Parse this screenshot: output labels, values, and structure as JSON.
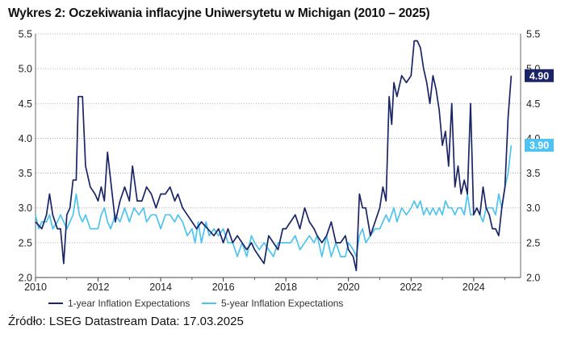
{
  "title": "Wykres 2: Oczekiwania inflacyjne Uniwersytetu w Michigan (2010 – 2025)",
  "source": "Źródło: LSEG Datastream Data: 17.03.2025",
  "chart_data": {
    "type": "line",
    "title": "Wykres 2: Oczekiwania inflacyjne Uniwersytetu w Michigan (2010 – 2025)",
    "xlabel": "",
    "ylabel": "",
    "xlim": [
      2010,
      2025.5
    ],
    "ylim": [
      2.0,
      5.5
    ],
    "x_ticks": [
      "2010",
      "2012",
      "2014",
      "2016",
      "2018",
      "2020",
      "2022",
      "2024"
    ],
    "y_ticks_left": [
      "2.0",
      "2.5",
      "3.0",
      "3.5",
      "4.0",
      "4.5",
      "5.0",
      "5.5"
    ],
    "y_ticks_right": [
      "2.0",
      "2.5",
      "3.0",
      "3.5",
      "4.0",
      "4.5",
      "5.0",
      "5.5"
    ],
    "grid": "horizontal dotted",
    "legend_position": "bottom",
    "end_labels": [
      "4.90",
      "3.90"
    ],
    "series": [
      {
        "name": "1-year Inflation Expectations",
        "color": "#1b2566",
        "points": [
          [
            2010.0,
            2.8
          ],
          [
            2010.2,
            2.7
          ],
          [
            2010.35,
            2.9
          ],
          [
            2010.45,
            3.2
          ],
          [
            2010.55,
            2.9
          ],
          [
            2010.7,
            2.7
          ],
          [
            2010.8,
            2.7
          ],
          [
            2010.9,
            2.2
          ],
          [
            2011.0,
            2.9
          ],
          [
            2011.1,
            3.0
          ],
          [
            2011.2,
            3.4
          ],
          [
            2011.3,
            3.4
          ],
          [
            2011.37,
            4.6
          ],
          [
            2011.5,
            4.6
          ],
          [
            2011.6,
            3.6
          ],
          [
            2011.75,
            3.3
          ],
          [
            2011.9,
            3.2
          ],
          [
            2012.0,
            3.1
          ],
          [
            2012.1,
            3.3
          ],
          [
            2012.2,
            3.1
          ],
          [
            2012.3,
            3.8
          ],
          [
            2012.45,
            3.2
          ],
          [
            2012.55,
            2.8
          ],
          [
            2012.7,
            3.1
          ],
          [
            2012.85,
            3.3
          ],
          [
            2013.0,
            3.1
          ],
          [
            2013.1,
            3.6
          ],
          [
            2013.25,
            3.1
          ],
          [
            2013.4,
            3.1
          ],
          [
            2013.55,
            3.3
          ],
          [
            2013.7,
            3.2
          ],
          [
            2013.85,
            3.0
          ],
          [
            2014.0,
            3.2
          ],
          [
            2014.15,
            3.2
          ],
          [
            2014.3,
            3.3
          ],
          [
            2014.45,
            3.1
          ],
          [
            2014.55,
            3.2
          ],
          [
            2014.7,
            3.0
          ],
          [
            2014.85,
            2.9
          ],
          [
            2015.0,
            2.8
          ],
          [
            2015.15,
            2.7
          ],
          [
            2015.3,
            2.8
          ],
          [
            2015.5,
            2.7
          ],
          [
            2015.7,
            2.6
          ],
          [
            2015.85,
            2.7
          ],
          [
            2016.0,
            2.5
          ],
          [
            2016.15,
            2.7
          ],
          [
            2016.3,
            2.5
          ],
          [
            2016.45,
            2.6
          ],
          [
            2016.6,
            2.5
          ],
          [
            2016.75,
            2.4
          ],
          [
            2016.9,
            2.5
          ],
          [
            2017.0,
            2.4
          ],
          [
            2017.15,
            2.3
          ],
          [
            2017.3,
            2.2
          ],
          [
            2017.45,
            2.6
          ],
          [
            2017.6,
            2.5
          ],
          [
            2017.75,
            2.4
          ],
          [
            2017.9,
            2.7
          ],
          [
            2018.0,
            2.7
          ],
          [
            2018.15,
            2.8
          ],
          [
            2018.3,
            2.9
          ],
          [
            2018.45,
            2.7
          ],
          [
            2018.6,
            3.0
          ],
          [
            2018.75,
            2.8
          ],
          [
            2018.9,
            2.7
          ],
          [
            2019.0,
            2.6
          ],
          [
            2019.15,
            2.5
          ],
          [
            2019.3,
            2.6
          ],
          [
            2019.45,
            2.8
          ],
          [
            2019.6,
            2.5
          ],
          [
            2019.75,
            2.5
          ],
          [
            2019.9,
            2.6
          ],
          [
            2020.0,
            2.4
          ],
          [
            2020.15,
            2.3
          ],
          [
            2020.25,
            2.1
          ],
          [
            2020.35,
            3.2
          ],
          [
            2020.45,
            3.0
          ],
          [
            2020.55,
            3.0
          ],
          [
            2020.7,
            2.6
          ],
          [
            2020.85,
            2.8
          ],
          [
            2021.0,
            3.0
          ],
          [
            2021.1,
            3.3
          ],
          [
            2021.2,
            3.1
          ],
          [
            2021.3,
            4.6
          ],
          [
            2021.38,
            4.2
          ],
          [
            2021.45,
            4.8
          ],
          [
            2021.55,
            4.6
          ],
          [
            2021.7,
            4.9
          ],
          [
            2021.85,
            4.8
          ],
          [
            2022.0,
            4.9
          ],
          [
            2022.1,
            5.4
          ],
          [
            2022.2,
            5.4
          ],
          [
            2022.3,
            5.3
          ],
          [
            2022.4,
            5.0
          ],
          [
            2022.5,
            4.8
          ],
          [
            2022.6,
            4.5
          ],
          [
            2022.7,
            4.9
          ],
          [
            2022.8,
            4.7
          ],
          [
            2022.9,
            4.4
          ],
          [
            2023.0,
            3.9
          ],
          [
            2023.1,
            4.1
          ],
          [
            2023.2,
            3.6
          ],
          [
            2023.3,
            4.5
          ],
          [
            2023.4,
            3.3
          ],
          [
            2023.5,
            3.6
          ],
          [
            2023.6,
            3.2
          ],
          [
            2023.7,
            3.4
          ],
          [
            2023.8,
            3.2
          ],
          [
            2023.9,
            4.5
          ],
          [
            2024.0,
            2.9
          ],
          [
            2024.1,
            3.0
          ],
          [
            2024.2,
            2.9
          ],
          [
            2024.3,
            3.3
          ],
          [
            2024.4,
            3.0
          ],
          [
            2024.5,
            2.9
          ],
          [
            2024.6,
            2.7
          ],
          [
            2024.7,
            2.7
          ],
          [
            2024.8,
            2.6
          ],
          [
            2024.9,
            3.0
          ],
          [
            2025.0,
            3.3
          ],
          [
            2025.1,
            4.3
          ],
          [
            2025.2,
            4.9
          ]
        ]
      },
      {
        "name": "5-year Inflation Expectations",
        "color": "#4fc3f0",
        "points": [
          [
            2010.0,
            2.9
          ],
          [
            2010.1,
            2.7
          ],
          [
            2010.2,
            2.8
          ],
          [
            2010.35,
            2.8
          ],
          [
            2010.45,
            2.9
          ],
          [
            2010.55,
            2.7
          ],
          [
            2010.7,
            2.8
          ],
          [
            2010.8,
            2.9
          ],
          [
            2010.9,
            2.8
          ],
          [
            2011.0,
            2.7
          ],
          [
            2011.1,
            2.8
          ],
          [
            2011.2,
            2.9
          ],
          [
            2011.3,
            3.2
          ],
          [
            2011.4,
            2.9
          ],
          [
            2011.5,
            2.8
          ],
          [
            2011.6,
            2.9
          ],
          [
            2011.75,
            2.7
          ],
          [
            2011.9,
            2.7
          ],
          [
            2012.0,
            2.7
          ],
          [
            2012.1,
            2.9
          ],
          [
            2012.2,
            3.0
          ],
          [
            2012.3,
            2.8
          ],
          [
            2012.4,
            2.7
          ],
          [
            2012.55,
            2.9
          ],
          [
            2012.7,
            2.8
          ],
          [
            2012.85,
            3.0
          ],
          [
            2013.0,
            2.8
          ],
          [
            2013.15,
            3.0
          ],
          [
            2013.3,
            2.9
          ],
          [
            2013.45,
            3.0
          ],
          [
            2013.55,
            2.8
          ],
          [
            2013.7,
            2.9
          ],
          [
            2013.85,
            2.9
          ],
          [
            2014.0,
            2.7
          ],
          [
            2014.15,
            2.9
          ],
          [
            2014.3,
            2.9
          ],
          [
            2014.45,
            2.8
          ],
          [
            2014.55,
            2.9
          ],
          [
            2014.7,
            2.8
          ],
          [
            2014.85,
            2.6
          ],
          [
            2015.0,
            2.7
          ],
          [
            2015.1,
            2.5
          ],
          [
            2015.2,
            2.8
          ],
          [
            2015.3,
            2.5
          ],
          [
            2015.45,
            2.8
          ],
          [
            2015.55,
            2.6
          ],
          [
            2015.7,
            2.7
          ],
          [
            2015.85,
            2.6
          ],
          [
            2016.0,
            2.7
          ],
          [
            2016.15,
            2.5
          ],
          [
            2016.3,
            2.5
          ],
          [
            2016.45,
            2.3
          ],
          [
            2016.6,
            2.5
          ],
          [
            2016.75,
            2.3
          ],
          [
            2016.9,
            2.6
          ],
          [
            2017.0,
            2.5
          ],
          [
            2017.15,
            2.4
          ],
          [
            2017.3,
            2.5
          ],
          [
            2017.45,
            2.4
          ],
          [
            2017.6,
            2.3
          ],
          [
            2017.75,
            2.5
          ],
          [
            2017.9,
            2.5
          ],
          [
            2018.0,
            2.5
          ],
          [
            2018.15,
            2.5
          ],
          [
            2018.3,
            2.6
          ],
          [
            2018.45,
            2.4
          ],
          [
            2018.6,
            2.5
          ],
          [
            2018.75,
            2.6
          ],
          [
            2018.9,
            2.5
          ],
          [
            2019.0,
            2.6
          ],
          [
            2019.15,
            2.3
          ],
          [
            2019.3,
            2.6
          ],
          [
            2019.45,
            2.3
          ],
          [
            2019.6,
            2.5
          ],
          [
            2019.75,
            2.3
          ],
          [
            2019.9,
            2.3
          ],
          [
            2020.0,
            2.5
          ],
          [
            2020.15,
            2.4
          ],
          [
            2020.25,
            2.3
          ],
          [
            2020.35,
            2.6
          ],
          [
            2020.45,
            2.7
          ],
          [
            2020.55,
            2.5
          ],
          [
            2020.7,
            2.6
          ],
          [
            2020.85,
            2.7
          ],
          [
            2021.0,
            2.7
          ],
          [
            2021.1,
            2.8
          ],
          [
            2021.2,
            2.9
          ],
          [
            2021.3,
            2.8
          ],
          [
            2021.45,
            3.0
          ],
          [
            2021.55,
            2.8
          ],
          [
            2021.7,
            3.0
          ],
          [
            2021.85,
            2.9
          ],
          [
            2022.0,
            3.0
          ],
          [
            2022.1,
            3.1
          ],
          [
            2022.2,
            3.0
          ],
          [
            2022.3,
            3.1
          ],
          [
            2022.4,
            2.9
          ],
          [
            2022.5,
            3.0
          ],
          [
            2022.6,
            2.9
          ],
          [
            2022.7,
            3.0
          ],
          [
            2022.8,
            2.9
          ],
          [
            2022.9,
            3.0
          ],
          [
            2023.0,
            2.9
          ],
          [
            2023.1,
            3.1
          ],
          [
            2023.2,
            3.0
          ],
          [
            2023.3,
            3.0
          ],
          [
            2023.4,
            2.9
          ],
          [
            2023.5,
            3.0
          ],
          [
            2023.6,
            3.0
          ],
          [
            2023.7,
            2.9
          ],
          [
            2023.8,
            3.2
          ],
          [
            2023.9,
            2.9
          ],
          [
            2024.0,
            2.9
          ],
          [
            2024.1,
            3.0
          ],
          [
            2024.2,
            2.9
          ],
          [
            2024.3,
            2.8
          ],
          [
            2024.4,
            3.0
          ],
          [
            2024.5,
            3.0
          ],
          [
            2024.6,
            3.0
          ],
          [
            2024.7,
            2.9
          ],
          [
            2024.8,
            3.2
          ],
          [
            2024.9,
            3.0
          ],
          [
            2025.0,
            3.3
          ],
          [
            2025.1,
            3.5
          ],
          [
            2025.2,
            3.9
          ]
        ]
      }
    ]
  }
}
